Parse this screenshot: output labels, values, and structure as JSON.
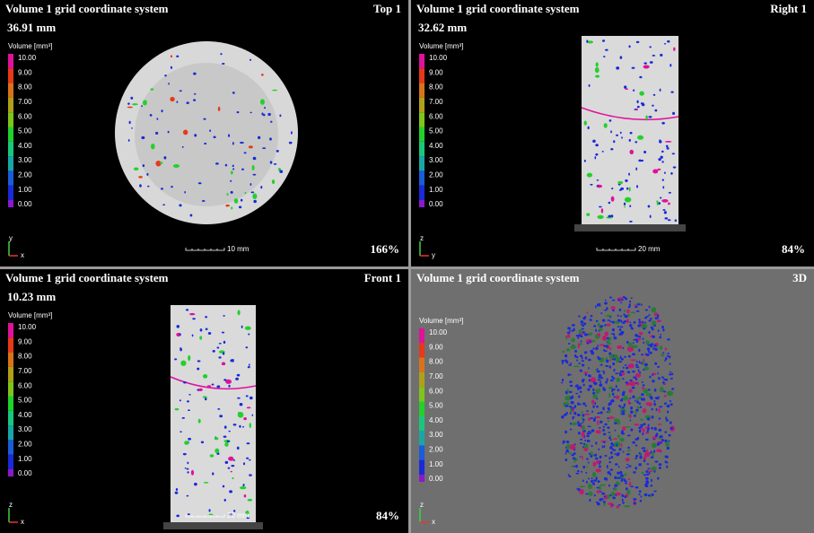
{
  "panels": [
    {
      "title": "Volume 1 grid coordinate system",
      "view": "Top 1",
      "depth": "36.91 mm",
      "legend": {
        "title": "Volume [mm³]",
        "labels": [
          "10.00",
          "9.00",
          "8.00",
          "7.00",
          "6.00",
          "5.00",
          "4.00",
          "3.00",
          "2.00",
          "1.00",
          "0.00"
        ]
      },
      "scale_bar": "10 mm",
      "zoom": "166%",
      "axes": {
        "up": "y",
        "right": "x"
      }
    },
    {
      "title": "Volume 1 grid coordinate system",
      "view": "Right 1",
      "depth": "32.62 mm",
      "legend": {
        "title": "Volume [mm³]",
        "labels": [
          "10.00",
          "9.00",
          "8.00",
          "7.00",
          "6.00",
          "5.00",
          "4.00",
          "3.00",
          "2.00",
          "1.00",
          "0.00"
        ]
      },
      "scale_bar": "20 mm",
      "zoom": "84%",
      "axes": {
        "up": "z",
        "right": "y"
      }
    },
    {
      "title": "Volume 1 grid coordinate system",
      "view": "Front 1",
      "depth": "10.23 mm",
      "legend": {
        "title": "Volume [mm³]",
        "labels": [
          "10.00",
          "9.00",
          "8.00",
          "7.00",
          "6.00",
          "5.00",
          "4.00",
          "3.00",
          "2.00",
          "1.00",
          "0.00"
        ]
      },
      "scale_bar": "20 mm",
      "zoom": "84%",
      "axes": {
        "up": "z",
        "right": "x"
      }
    },
    {
      "title": "Volume 1 grid coordinate system",
      "view": "3D",
      "legend": {
        "title": "Volume [mm³]",
        "labels": [
          "10.00",
          "9.00",
          "8.00",
          "7.00",
          "6.00",
          "5.00",
          "4.00",
          "3.00",
          "2.00",
          "1.00",
          "0.00"
        ]
      },
      "axes": {
        "up": "z",
        "right": "x"
      }
    }
  ]
}
